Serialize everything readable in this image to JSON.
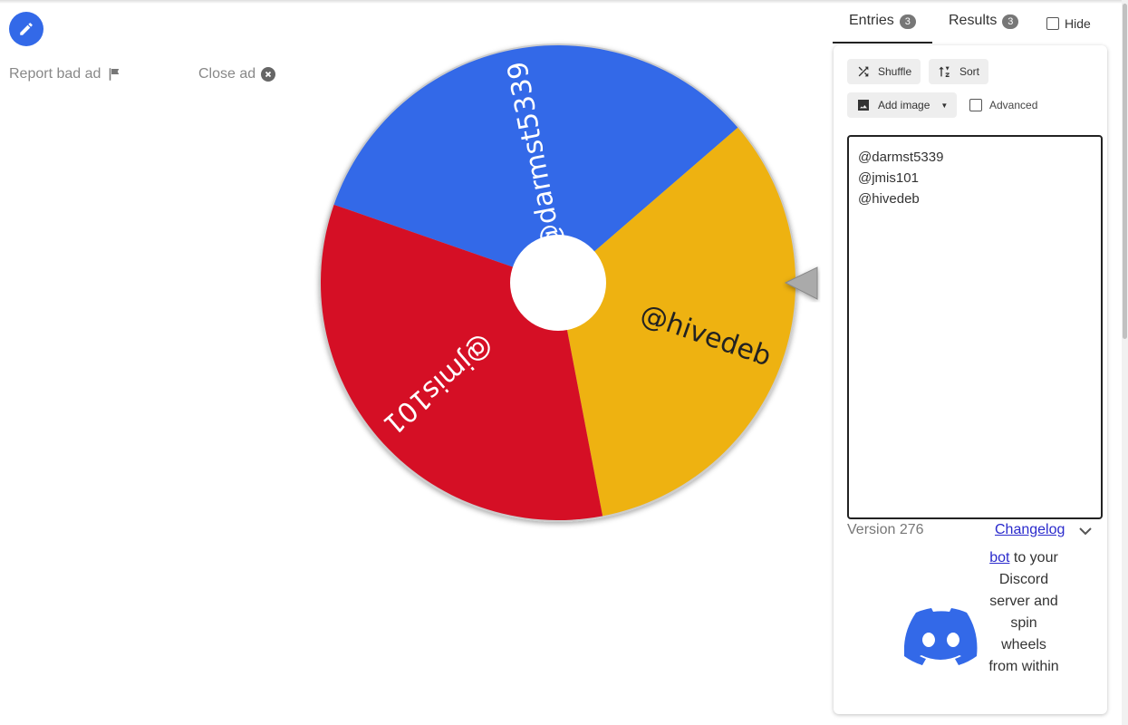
{
  "ad": {
    "report_label": "Report bad ad",
    "close_label": "Close ad"
  },
  "wheel": {
    "entries": [
      {
        "label": "@darmst5339",
        "color": "#3369e8",
        "text_color": "#ffffff"
      },
      {
        "label": "@hivedeb",
        "color": "#eeb211",
        "text_color": "#222222"
      },
      {
        "label": "@jmis101",
        "color": "#d50f25",
        "text_color": "#ffffff"
      }
    ]
  },
  "tabs": {
    "entries": {
      "label": "Entries",
      "count": "3"
    },
    "results": {
      "label": "Results",
      "count": "3"
    },
    "hide_label": "Hide"
  },
  "toolbar": {
    "shuffle": "Shuffle",
    "sort": "Sort",
    "add_image": "Add image",
    "advanced": "Advanced"
  },
  "entries_text": "@darmst5339\n@jmis101\n@hivedeb",
  "footer": {
    "version": "Version 276",
    "changelog": "Changelog"
  },
  "discord": {
    "link": "bot",
    "text": " to your Discord server and spin wheels from within"
  },
  "colors": {
    "accent": "#3369e8"
  }
}
